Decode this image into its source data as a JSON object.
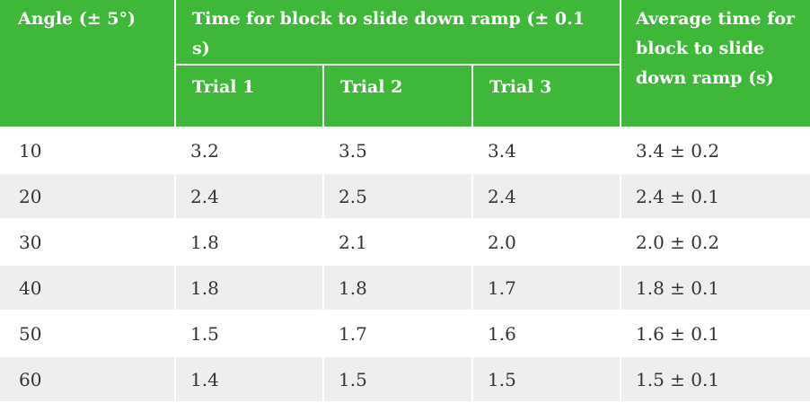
{
  "table": {
    "headers": {
      "angle": "Angle (± 5°)",
      "time_group": "Time for block to slide down ramp (± 0.1 s)",
      "trial1": "Trial 1",
      "trial2": "Trial 2",
      "trial3": "Trial 3",
      "average": "Average time for block to slide down ramp (s)"
    },
    "rows": [
      {
        "angle": "10",
        "t1": "3.2",
        "t2": "3.5",
        "t3": "3.4",
        "avg": "3.4 ± 0.2"
      },
      {
        "angle": "20",
        "t1": "2.4",
        "t2": "2.5",
        "t3": "2.4",
        "avg": "2.4 ± 0.1"
      },
      {
        "angle": "30",
        "t1": "1.8",
        "t2": "2.1",
        "t3": "2.0",
        "avg": "2.0 ± 0.2"
      },
      {
        "angle": "40",
        "t1": "1.8",
        "t2": "1.8",
        "t3": "1.7",
        "avg": "1.8 ± 0.1"
      },
      {
        "angle": "50",
        "t1": "1.5",
        "t2": "1.7",
        "t3": "1.6",
        "avg": "1.6 ± 0.1"
      },
      {
        "angle": "60",
        "t1": "1.4",
        "t2": "1.5",
        "t3": "1.5",
        "avg": "1.5 ± 0.1"
      }
    ],
    "colors": {
      "header_bg": "#3fb83a",
      "header_text": "#ffffff",
      "row_alt_bg": "#eeeeee",
      "row_bg": "#ffffff"
    }
  }
}
